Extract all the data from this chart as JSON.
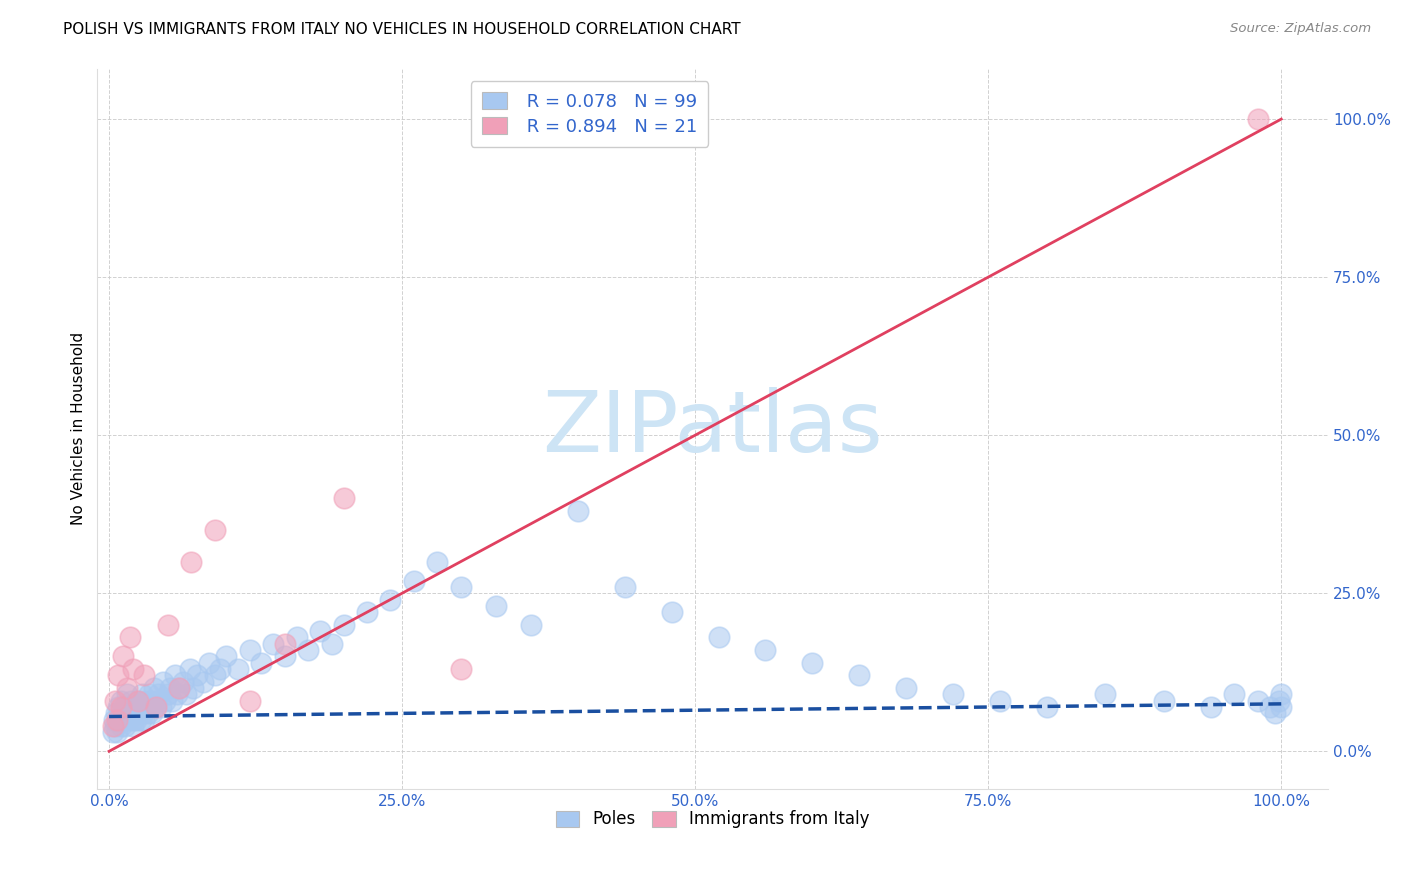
{
  "title": "POLISH VS IMMIGRANTS FROM ITALY NO VEHICLES IN HOUSEHOLD CORRELATION CHART",
  "source": "Source: ZipAtlas.com",
  "ylabel": "No Vehicles in Household",
  "color_poles": "#a8c8f0",
  "color_poles_edge": "#a8c8f0",
  "color_italy": "#f0a0b8",
  "color_italy_edge": "#f0a0b8",
  "color_poles_line": "#1a4fa0",
  "color_italy_line": "#e04060",
  "watermark_color": "#cde4f5",
  "tick_color": "#3366cc",
  "grid_color": "#cccccc",
  "legend_text_color": "#3366cc",
  "x_ticks": [
    0.0,
    0.25,
    0.5,
    0.75,
    1.0
  ],
  "x_tick_labels": [
    "0.0%",
    "25.0%",
    "50.0%",
    "75.0%",
    "100.0%"
  ],
  "y_ticks": [
    0.0,
    0.25,
    0.5,
    0.75,
    1.0
  ],
  "y_tick_labels": [
    "0.0%",
    "25.0%",
    "50.0%",
    "75.0%",
    "100.0%"
  ],
  "poles_line_x0": 0.0,
  "poles_line_y0": 0.055,
  "poles_line_x1": 1.0,
  "poles_line_y1": 0.075,
  "italy_line_x0": 0.0,
  "italy_line_y0": 0.0,
  "italy_line_x1": 1.0,
  "italy_line_y1": 1.0,
  "poles_x": [
    0.003,
    0.004,
    0.005,
    0.006,
    0.007,
    0.008,
    0.009,
    0.01,
    0.01,
    0.011,
    0.012,
    0.013,
    0.014,
    0.015,
    0.015,
    0.016,
    0.017,
    0.018,
    0.019,
    0.02,
    0.02,
    0.021,
    0.022,
    0.023,
    0.024,
    0.025,
    0.026,
    0.027,
    0.028,
    0.029,
    0.03,
    0.031,
    0.032,
    0.033,
    0.034,
    0.035,
    0.036,
    0.037,
    0.038,
    0.039,
    0.04,
    0.042,
    0.044,
    0.046,
    0.048,
    0.05,
    0.052,
    0.054,
    0.056,
    0.058,
    0.06,
    0.063,
    0.066,
    0.069,
    0.072,
    0.075,
    0.08,
    0.085,
    0.09,
    0.095,
    0.1,
    0.11,
    0.12,
    0.13,
    0.14,
    0.15,
    0.16,
    0.17,
    0.18,
    0.19,
    0.2,
    0.22,
    0.24,
    0.26,
    0.28,
    0.3,
    0.33,
    0.36,
    0.4,
    0.44,
    0.48,
    0.52,
    0.56,
    0.6,
    0.64,
    0.68,
    0.72,
    0.76,
    0.8,
    0.85,
    0.9,
    0.94,
    0.96,
    0.98,
    0.99,
    0.995,
    0.998,
    1.0,
    1.0
  ],
  "poles_y": [
    0.03,
    0.05,
    0.04,
    0.06,
    0.03,
    0.07,
    0.05,
    0.04,
    0.08,
    0.06,
    0.05,
    0.07,
    0.04,
    0.06,
    0.09,
    0.05,
    0.07,
    0.06,
    0.08,
    0.05,
    0.04,
    0.07,
    0.06,
    0.05,
    0.08,
    0.06,
    0.07,
    0.05,
    0.09,
    0.06,
    0.05,
    0.08,
    0.07,
    0.06,
    0.09,
    0.07,
    0.08,
    0.06,
    0.1,
    0.07,
    0.08,
    0.09,
    0.07,
    0.11,
    0.08,
    0.09,
    0.1,
    0.08,
    0.12,
    0.09,
    0.1,
    0.11,
    0.09,
    0.13,
    0.1,
    0.12,
    0.11,
    0.14,
    0.12,
    0.13,
    0.15,
    0.13,
    0.16,
    0.14,
    0.17,
    0.15,
    0.18,
    0.16,
    0.19,
    0.17,
    0.2,
    0.22,
    0.24,
    0.27,
    0.3,
    0.26,
    0.23,
    0.2,
    0.38,
    0.26,
    0.22,
    0.18,
    0.16,
    0.14,
    0.12,
    0.1,
    0.09,
    0.08,
    0.07,
    0.09,
    0.08,
    0.07,
    0.09,
    0.08,
    0.07,
    0.06,
    0.08,
    0.07,
    0.09
  ],
  "italy_x": [
    0.003,
    0.005,
    0.007,
    0.008,
    0.01,
    0.012,
    0.015,
    0.018,
    0.02,
    0.025,
    0.03,
    0.04,
    0.05,
    0.06,
    0.07,
    0.09,
    0.12,
    0.15,
    0.2,
    0.3,
    0.98
  ],
  "italy_y": [
    0.04,
    0.08,
    0.05,
    0.12,
    0.07,
    0.15,
    0.1,
    0.18,
    0.13,
    0.08,
    0.12,
    0.07,
    0.2,
    0.1,
    0.3,
    0.35,
    0.08,
    0.17,
    0.4,
    0.13,
    1.0
  ]
}
